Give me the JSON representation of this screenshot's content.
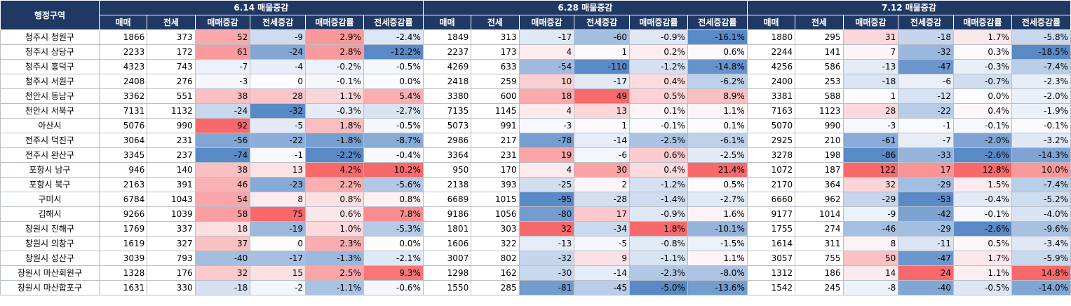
{
  "header": {
    "region_label": "행정구역",
    "groups": [
      "6.14 매물증감",
      "6.28 매물증감",
      "7.12 매물증감"
    ],
    "columns": [
      "매매",
      "전세",
      "매매증감",
      "전세증감",
      "매매증감률",
      "전세증감률"
    ]
  },
  "heat": {
    "pos_color": "#f8696b",
    "neg_color": "#5a8ac6",
    "mid_color": "#fcfcff"
  },
  "rows": [
    {
      "region": "청주시 청원구",
      "values": [
        "1866",
        "373",
        "52",
        "-9",
        "2.9%",
        "-2.4%",
        "1849",
        "313",
        "-17",
        "-60",
        "-0.9%",
        "-16.1%",
        "1880",
        "295",
        "31",
        "-18",
        "1.7%",
        "-5.8%"
      ]
    },
    {
      "region": "청주시 상당구",
      "values": [
        "2233",
        "172",
        "61",
        "-24",
        "2.8%",
        "-12.2%",
        "2237",
        "173",
        "4",
        "1",
        "0.2%",
        "0.6%",
        "2244",
        "141",
        "7",
        "-32",
        "0.3%",
        "-18.5%"
      ]
    },
    {
      "region": "청주시 흥덕구",
      "values": [
        "4323",
        "743",
        "-7",
        "-4",
        "-0.2%",
        "-0.5%",
        "4269",
        "633",
        "-54",
        "-110",
        "-1.2%",
        "-14.8%",
        "4256",
        "586",
        "-13",
        "-47",
        "-0.3%",
        "-7.4%"
      ]
    },
    {
      "region": "청주시 서원구",
      "values": [
        "2408",
        "276",
        "-3",
        "0",
        "-0.1%",
        "0.0%",
        "2418",
        "259",
        "10",
        "-17",
        "0.4%",
        "-6.2%",
        "2400",
        "253",
        "-18",
        "-6",
        "-0.7%",
        "-2.3%"
      ]
    },
    {
      "region": "천안시 동남구",
      "values": [
        "3362",
        "551",
        "38",
        "28",
        "1.1%",
        "5.4%",
        "3380",
        "600",
        "18",
        "49",
        "0.5%",
        "8.9%",
        "3381",
        "588",
        "1",
        "-12",
        "0.0%",
        "-2.0%"
      ]
    },
    {
      "region": "천안시 서북구",
      "values": [
        "7131",
        "1132",
        "-24",
        "-32",
        "-0.3%",
        "-2.7%",
        "7135",
        "1145",
        "4",
        "13",
        "0.1%",
        "1.1%",
        "7163",
        "1123",
        "28",
        "-22",
        "0.4%",
        "-1.9%"
      ]
    },
    {
      "region": "아산시",
      "values": [
        "5076",
        "990",
        "92",
        "-5",
        "1.8%",
        "-0.5%",
        "5073",
        "991",
        "-3",
        "1",
        "-0.1%",
        "0.1%",
        "5070",
        "990",
        "-3",
        "-1",
        "-0.1%",
        "-0.1%"
      ]
    },
    {
      "region": "전주시 덕진구",
      "values": [
        "3064",
        "231",
        "-56",
        "-22",
        "-1.8%",
        "-8.7%",
        "2986",
        "217",
        "-78",
        "-14",
        "-2.5%",
        "-6.1%",
        "2925",
        "210",
        "-61",
        "-7",
        "-2.0%",
        "-3.2%"
      ]
    },
    {
      "region": "전주시 완산구",
      "values": [
        "3345",
        "237",
        "-74",
        "-1",
        "-2.2%",
        "-0.4%",
        "3364",
        "231",
        "19",
        "-6",
        "0.6%",
        "-2.5%",
        "3278",
        "198",
        "-86",
        "-33",
        "-2.6%",
        "-14.3%"
      ]
    },
    {
      "region": "포항시 남구",
      "values": [
        "946",
        "140",
        "38",
        "13",
        "4.2%",
        "10.2%",
        "950",
        "170",
        "4",
        "30",
        "0.4%",
        "21.4%",
        "1072",
        "187",
        "122",
        "17",
        "12.8%",
        "10.0%"
      ]
    },
    {
      "region": "포항시 북구",
      "values": [
        "2163",
        "391",
        "46",
        "-23",
        "2.2%",
        "-5.6%",
        "2138",
        "393",
        "-25",
        "2",
        "-1.2%",
        "0.5%",
        "2170",
        "364",
        "32",
        "-29",
        "1.5%",
        "-7.4%"
      ]
    },
    {
      "region": "구미시",
      "values": [
        "6784",
        "1043",
        "54",
        "8",
        "0.8%",
        "0.8%",
        "6689",
        "1015",
        "-95",
        "-28",
        "-1.4%",
        "-2.7%",
        "6660",
        "962",
        "-29",
        "-53",
        "-0.4%",
        "-5.2%"
      ]
    },
    {
      "region": "김해시",
      "values": [
        "9266",
        "1039",
        "58",
        "75",
        "0.6%",
        "7.8%",
        "9186",
        "1056",
        "-80",
        "17",
        "-0.9%",
        "1.6%",
        "9177",
        "1014",
        "-9",
        "-42",
        "-0.1%",
        "-4.0%"
      ]
    },
    {
      "region": "창원시 진해구",
      "values": [
        "1769",
        "337",
        "18",
        "-19",
        "1.0%",
        "-5.3%",
        "1801",
        "303",
        "32",
        "-34",
        "1.8%",
        "-10.1%",
        "1755",
        "274",
        "-46",
        "-29",
        "-2.6%",
        "-9.6%"
      ]
    },
    {
      "region": "창원시 의창구",
      "values": [
        "1619",
        "327",
        "37",
        "0",
        "2.3%",
        "0.0%",
        "1606",
        "322",
        "-13",
        "-5",
        "-0.8%",
        "-1.5%",
        "1614",
        "311",
        "8",
        "-11",
        "0.5%",
        "-3.4%"
      ]
    },
    {
      "region": "창원시 성산구",
      "values": [
        "3039",
        "793",
        "-40",
        "-17",
        "-1.3%",
        "-2.1%",
        "3007",
        "802",
        "-32",
        "9",
        "-1.1%",
        "1.1%",
        "3057",
        "755",
        "50",
        "-47",
        "1.7%",
        "-5.9%"
      ]
    },
    {
      "region": "창원시 마산회원구",
      "values": [
        "1328",
        "176",
        "32",
        "15",
        "2.5%",
        "9.3%",
        "1298",
        "162",
        "-30",
        "-14",
        "-2.3%",
        "-8.0%",
        "1312",
        "186",
        "14",
        "24",
        "1.1%",
        "14.8%"
      ]
    },
    {
      "region": "창원시 마산합포구",
      "values": [
        "1631",
        "330",
        "-18",
        "-2",
        "-1.1%",
        "-0.6%",
        "1550",
        "285",
        "-81",
        "-45",
        "-5.0%",
        "-13.6%",
        "1542",
        "245",
        "-8",
        "-40",
        "-0.5%",
        "-14.0%"
      ]
    }
  ]
}
